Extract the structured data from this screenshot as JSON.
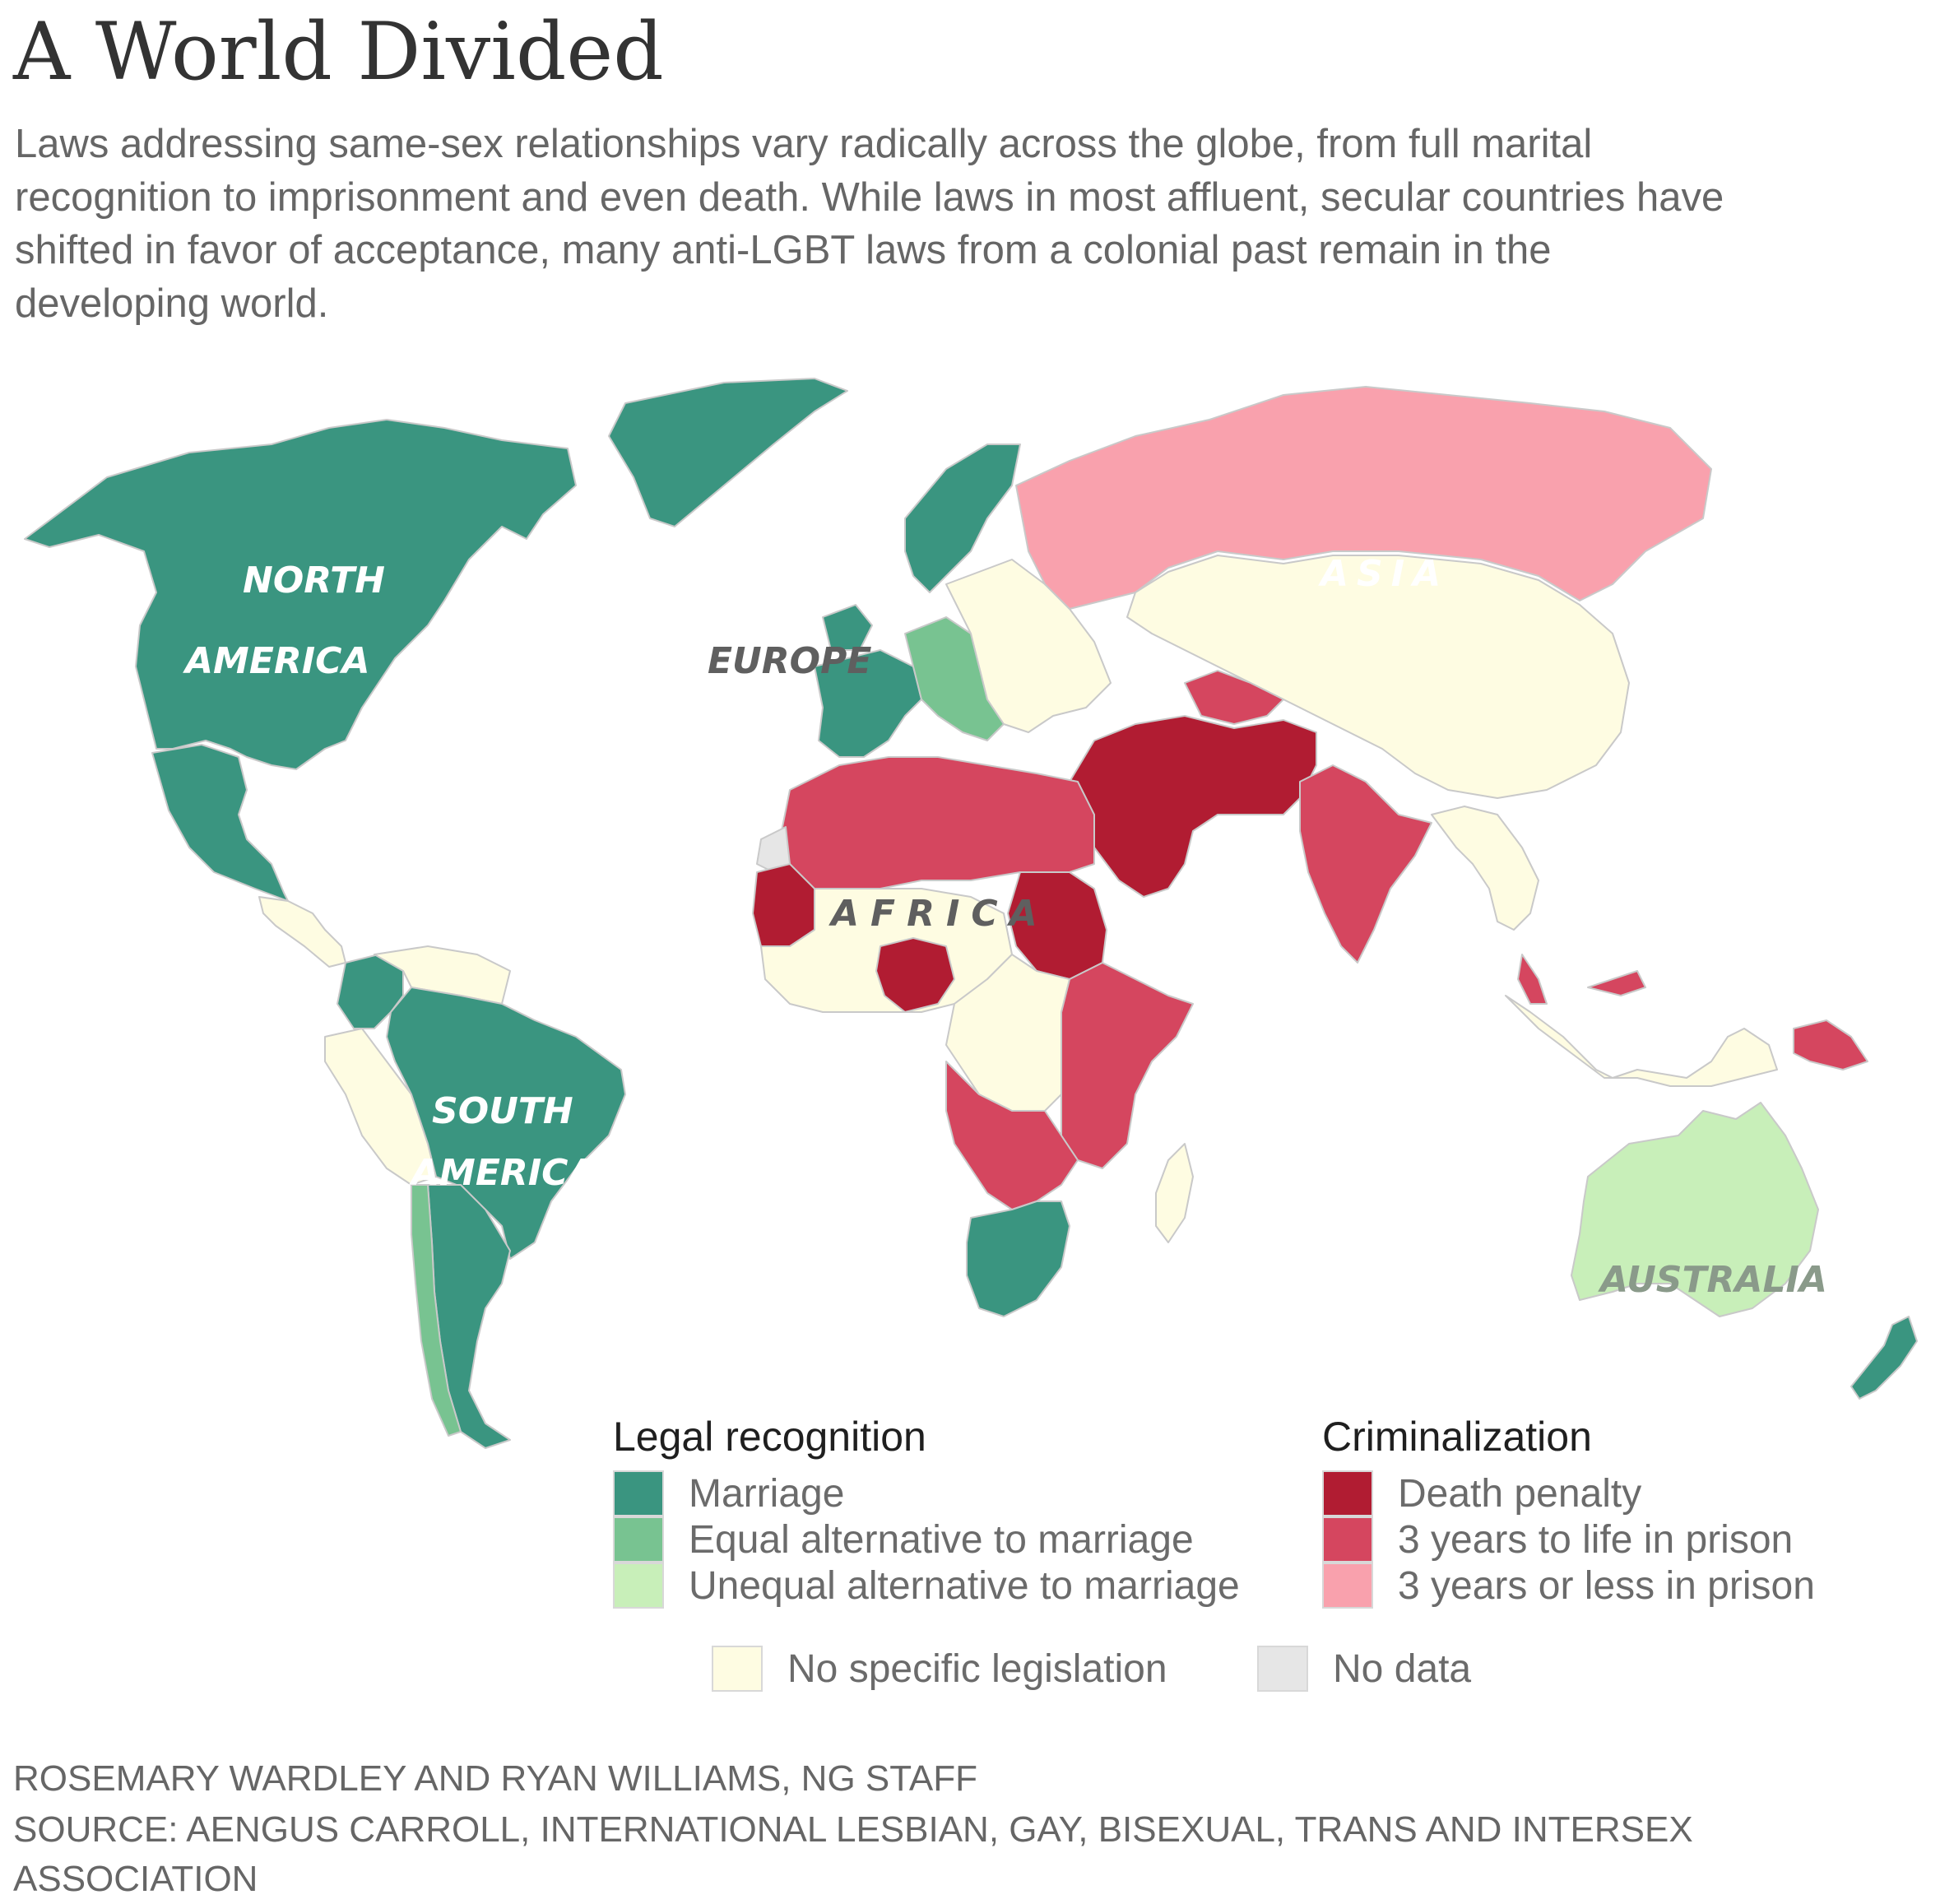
{
  "title": "A World Divided",
  "subtitle": "Laws addressing same-sex relationships vary radically across the globe, from full marital recognition to imprisonment and even death. While laws in most affluent, secular countries have shifted in favor of acceptance, many anti-LGBT laws from a colonial past remain in the developing world.",
  "map": {
    "region_labels": {
      "north_america_1": "NORTH",
      "north_america_2": "AMERICA",
      "europe": "EUROPE",
      "asia": "ASIA",
      "africa": "AFRICA",
      "south_america_1": "SOUTH",
      "south_america_2": "AMERICA",
      "australia": "AUSTRALIA"
    },
    "category_colors": {
      "marriage": "#3a9580",
      "equal_alternative": "#78c391",
      "unequal_alternative": "#c8efb9",
      "death_penalty": "#b11c32",
      "prison_3_to_life": "#d5465f",
      "prison_3_or_less": "#f9a1ad",
      "no_legislation": "#fefce2",
      "no_data": "#e6e6e6"
    },
    "region_categories": {
      "north_america": "marriage",
      "greenland": "marriage",
      "mexico": "marriage",
      "central_america": "no_legislation",
      "south_america_north": "no_legislation",
      "brazil": "marriage",
      "colombia": "marriage",
      "argentina": "marriage",
      "chile": "equal_alternative",
      "western_europe": "marriage",
      "central_europe": "equal_alternative",
      "eastern_europe": "no_legislation",
      "russia": "prison_3_or_less",
      "china_region": "no_legislation",
      "middle_east": "death_penalty",
      "central_asia": "prison_3_to_life",
      "india": "prison_3_to_life",
      "north_africa": "prison_3_to_life",
      "sudan": "death_penalty",
      "mauritania": "death_penalty",
      "nigeria": "death_penalty",
      "west_africa": "no_legislation",
      "east_africa": "prison_3_to_life",
      "central_africa": "no_legislation",
      "angola_zambia": "prison_3_to_life",
      "south_africa": "marriage",
      "madagascar": "no_legislation",
      "southeast_asia": "no_legislation",
      "malaysia": "prison_3_to_life",
      "papua_new_guinea": "prison_3_to_life",
      "australia": "unequal_alternative",
      "new_zealand": "marriage",
      "western_sahara": "no_data"
    }
  },
  "legend": {
    "legal_heading": "Legal recognition",
    "legal_items": [
      {
        "label": "Marriage",
        "color": "#3a9580"
      },
      {
        "label": "Equal alternative to marriage",
        "color": "#78c391"
      },
      {
        "label": "Unequal alternative to marriage",
        "color": "#c8efb9"
      }
    ],
    "crim_heading": "Criminalization",
    "crim_items": [
      {
        "label": "Death penalty",
        "color": "#b11c32"
      },
      {
        "label": "3 years to life in prison",
        "color": "#d5465f"
      },
      {
        "label": "3 years or less in prison",
        "color": "#f9a1ad"
      }
    ],
    "other_items": [
      {
        "label": "No specific legislation",
        "color": "#fefce2"
      },
      {
        "label": "No data",
        "color": "#e6e6e6"
      }
    ]
  },
  "credits": {
    "line1": "ROSEMARY WARDLEY AND RYAN WILLIAMS, NG STAFF",
    "line2": "SOURCE: AENGUS CARROLL, INTERNATIONAL LESBIAN, GAY, BISEXUAL, TRANS AND INTERSEX",
    "line3": "ASSOCIATION"
  }
}
